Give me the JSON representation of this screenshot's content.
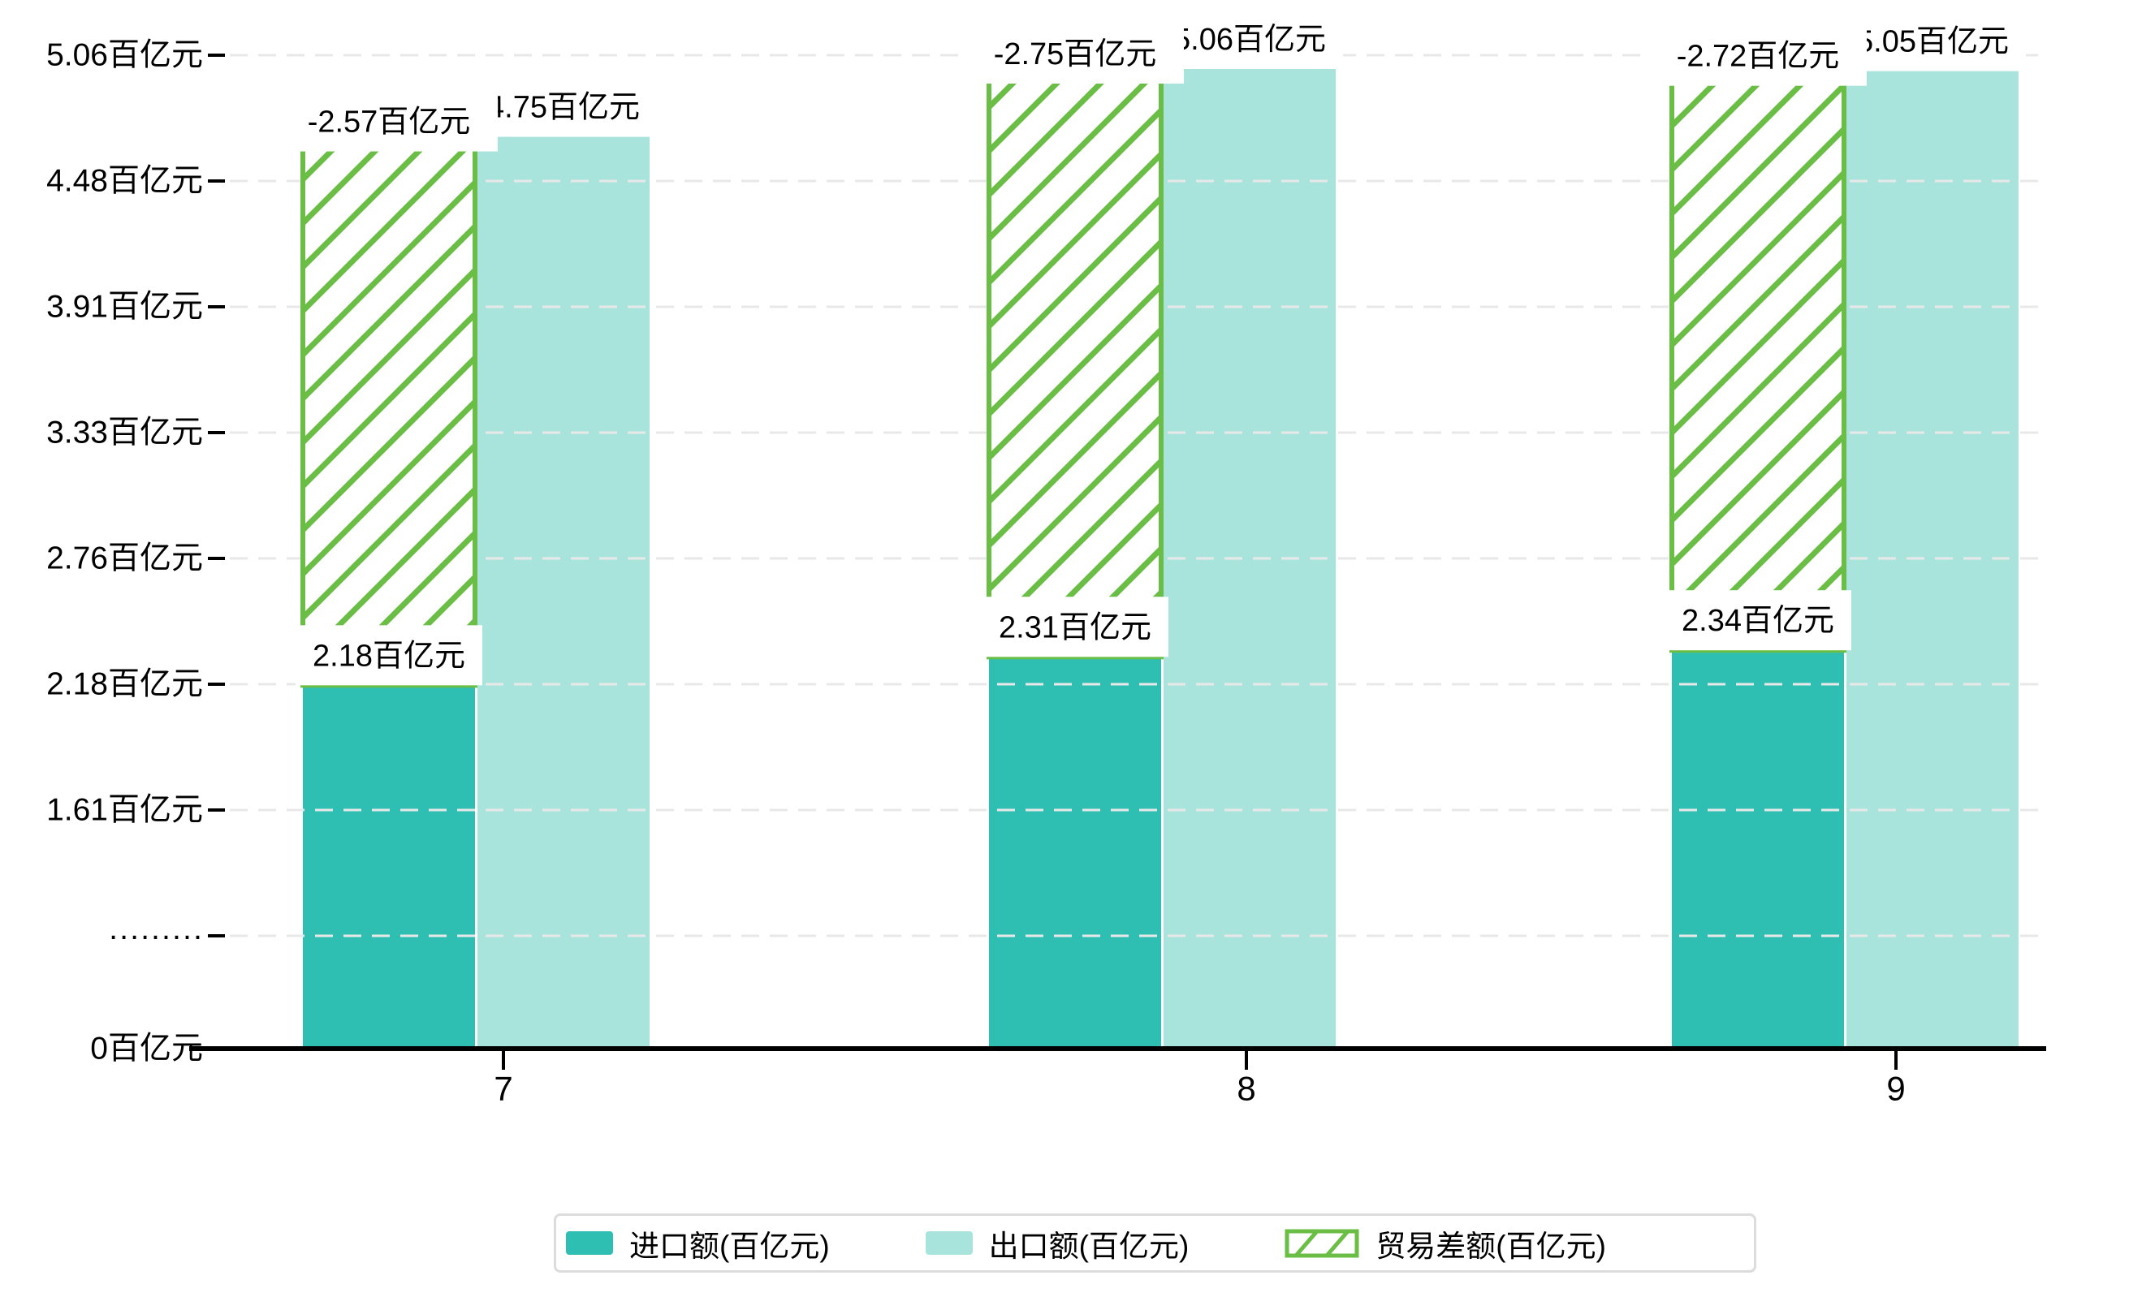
{
  "chart_data": {
    "type": "bar",
    "title": "",
    "categories": [
      "7",
      "8",
      "9"
    ],
    "unit": "百亿元",
    "series": [
      {
        "name": "进口额(百亿元)",
        "style": "solid",
        "color": "#2fbfb2",
        "values": [
          2.18,
          2.31,
          2.34
        ],
        "data_labels": [
          "2.18百亿元",
          "2.31百亿元",
          "2.34百亿元"
        ]
      },
      {
        "name": "出口额(百亿元)",
        "style": "solid",
        "color": "#a9e4dc",
        "values": [
          4.75,
          5.06,
          5.05
        ],
        "data_labels": [
          "4.75百亿元",
          "5.06百亿元",
          "5.05百亿元"
        ]
      },
      {
        "name": "贸易差额(百亿元)",
        "style": "hatched",
        "color": "#6abe45",
        "values": [
          -2.57,
          -2.75,
          -2.72
        ],
        "data_labels": [
          "-2.57百亿元",
          "-2.75百亿元",
          "-2.72百亿元"
        ]
      }
    ],
    "x_axis": {
      "tick_labels": [
        "7",
        "8",
        "9"
      ]
    },
    "y_axis": {
      "min": 0,
      "max": 5.06,
      "tick_labels": [
        "5.06百亿元",
        "4.48百亿元",
        "3.91百亿元",
        "3.33百亿元",
        "2.76百亿元",
        "2.18百亿元",
        "1.61百亿元",
        "·········",
        "0百亿元"
      ],
      "broken_axis_marker": "·········",
      "tick_values": [
        5.06,
        4.48,
        3.91,
        3.33,
        2.76,
        2.18,
        1.61,
        null,
        0
      ]
    },
    "grid": "dashed-horizontal",
    "legend_position": "bottom"
  },
  "legend": {
    "items": [
      {
        "label": "进口额(百亿元)",
        "swatch": "solid-teal"
      },
      {
        "label": "出口额(百亿元)",
        "swatch": "solid-light-teal"
      },
      {
        "label": "贸易差额(百亿元)",
        "swatch": "hatched-green"
      }
    ]
  },
  "colors": {
    "import_bar": "#2fbfb2",
    "export_bar": "#a9e4dc",
    "trade_hatch": "#6abe45",
    "gridline": "#e8e8e8",
    "axis": "#000000",
    "label_text": "#000000",
    "label_bg": "#ffffff",
    "legend_border": "#dcdcdc"
  }
}
